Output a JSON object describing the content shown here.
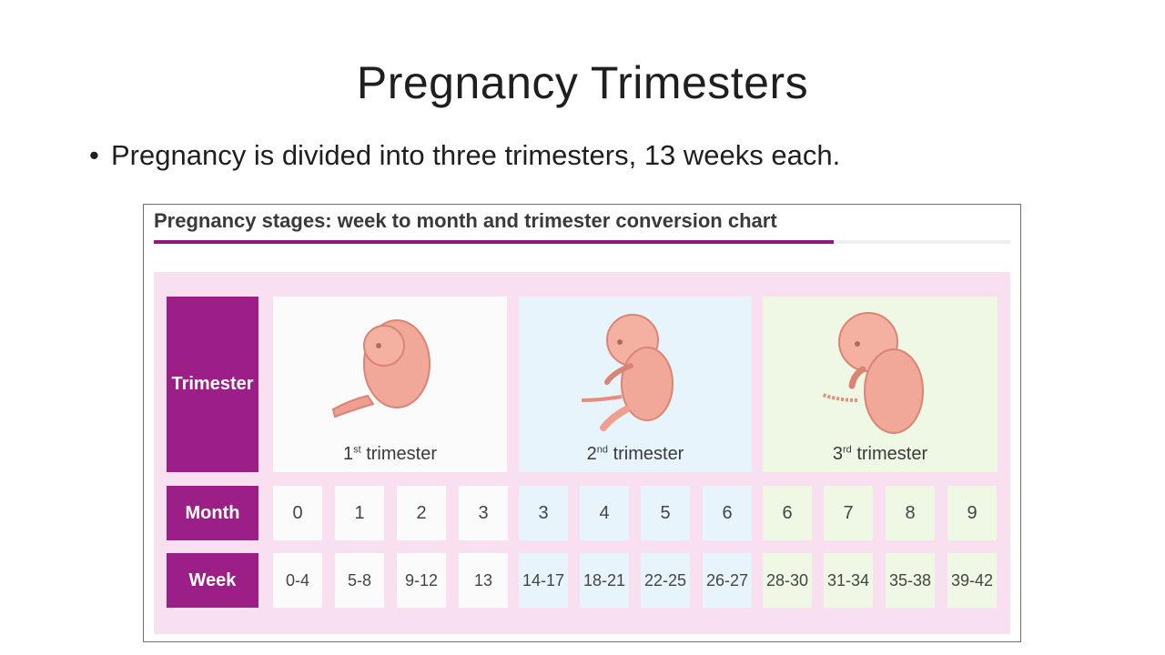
{
  "slide": {
    "title": "Pregnancy Trimesters",
    "bullet": "Pregnancy is divided into three trimesters, 13 weeks each."
  },
  "figure": {
    "title": "Pregnancy stages: week to month and trimester conversion chart",
    "row_headers": {
      "trimester": "Trimester",
      "month": "Month",
      "week": "Week"
    },
    "trimesters": [
      {
        "ordinal": "1",
        "suffix": "st",
        "word": "trimester",
        "image": "fetus-first-trimester"
      },
      {
        "ordinal": "2",
        "suffix": "nd",
        "word": "trimester",
        "image": "fetus-second-trimester"
      },
      {
        "ordinal": "3",
        "suffix": "rd",
        "word": "trimester",
        "image": "fetus-third-trimester"
      }
    ],
    "months": [
      "0",
      "1",
      "2",
      "3",
      "3",
      "4",
      "5",
      "6",
      "6",
      "7",
      "8",
      "9"
    ],
    "weeks": [
      "0-4",
      "5-8",
      "9-12",
      "13",
      "14-17",
      "18-21",
      "22-25",
      "26-27",
      "28-30",
      "31-34",
      "35-38",
      "39-42"
    ],
    "colors": {
      "accent": "#9c1f87",
      "panel": "#f8e0f1",
      "first_trimester": "#fbfbfb",
      "second_trimester": "#e7f4fb",
      "third_trimester": "#eef8e5",
      "fetus": "#f2a898"
    }
  }
}
